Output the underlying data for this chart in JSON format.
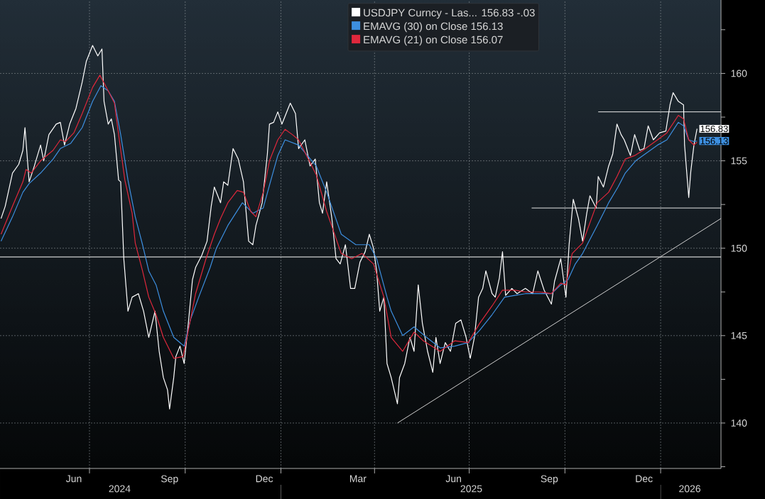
{
  "chart_data": {
    "type": "line",
    "xlim": [
      "2024-04-06",
      "2026-02-28"
    ],
    "ylim": [
      137.4,
      164.2
    ],
    "xticks": [
      {
        "value": "2024-06-16",
        "label": "Jun"
      },
      {
        "value": "2024-09-16",
        "label": "Sep"
      },
      {
        "value": "2024-12-16",
        "label": "Dec"
      },
      {
        "value": "2025-03-16",
        "label": "Mar"
      },
      {
        "value": "2025-06-16",
        "label": "Jun"
      },
      {
        "value": "2025-09-16",
        "label": "Sep"
      },
      {
        "value": "2025-12-16",
        "label": "Dec"
      },
      {
        "value": "2024-07-01",
        "label": null
      },
      {
        "value": "2024-10-01",
        "label": null
      },
      {
        "value": "2025-01-01",
        "label": null
      },
      {
        "value": "2025-04-01",
        "label": null
      },
      {
        "value": "2025-07-01",
        "label": null
      },
      {
        "value": "2025-10-01",
        "label": null
      },
      {
        "value": "2026-01-01",
        "label": null
      }
    ],
    "x2lim": [
      "2024-04-06",
      "2026-02-28"
    ],
    "x2ticks": [
      {
        "value": "2024-07-30",
        "label": "2024"
      },
      {
        "value": "2025-07-03",
        "label": "2025"
      },
      {
        "value": "2026-01-29",
        "label": "2026"
      },
      {
        "value": "2025-01-01",
        "label": null
      },
      {
        "value": "2026-01-01",
        "label": null
      }
    ],
    "yticks": [
      {
        "value": 137.5,
        "label": null
      },
      140,
      {
        "value": 142.5,
        "label": null
      },
      145,
      {
        "value": 147.5,
        "label": null
      },
      150,
      {
        "value": 152.5,
        "label": null
      },
      155,
      {
        "value": 157.5,
        "label": null
      },
      160,
      {
        "value": 162.5,
        "label": null
      }
    ],
    "grid": true,
    "legend": "top",
    "series": [
      {
        "name": "USDJPY Curncy - Las...  156.83  -.03",
        "color": "#ffffff",
        "x": [
          "2024-04-07",
          "2024-04-11",
          "2024-04-18",
          "2024-04-24",
          "2024-04-28",
          "2024-04-30",
          "2024-05-04",
          "2024-05-09",
          "2024-05-15",
          "2024-05-18",
          "2024-05-23",
          "2024-05-30",
          "2024-06-03",
          "2024-06-07",
          "2024-06-12",
          "2024-06-18",
          "2024-06-24",
          "2024-06-28",
          "2024-07-04",
          "2024-07-09",
          "2024-07-13",
          "2024-07-15",
          "2024-07-19",
          "2024-07-22",
          "2024-07-25",
          "2024-07-29",
          "2024-07-31",
          "2024-08-03",
          "2024-08-07",
          "2024-08-11",
          "2024-08-17",
          "2024-08-22",
          "2024-08-27",
          "2024-09-02",
          "2024-09-06",
          "2024-09-10",
          "2024-09-14",
          "2024-09-16",
          "2024-09-20",
          "2024-09-22",
          "2024-09-26",
          "2024-09-30",
          "2024-10-04",
          "2024-10-08",
          "2024-10-11",
          "2024-10-17",
          "2024-10-22",
          "2024-10-26",
          "2024-10-29",
          "2024-11-04",
          "2024-11-07",
          "2024-11-11",
          "2024-11-16",
          "2024-11-21",
          "2024-11-26",
          "2024-12-01",
          "2024-12-05",
          "2024-12-08",
          "2024-12-14",
          "2024-12-19",
          "2024-12-21",
          "2024-12-25",
          "2024-12-29",
          "2025-01-02",
          "2025-01-06",
          "2025-01-10",
          "2025-01-15",
          "2025-01-18",
          "2025-01-24",
          "2025-01-29",
          "2025-02-03",
          "2025-02-07",
          "2025-02-10",
          "2025-02-14",
          "2025-02-19",
          "2025-02-23",
          "2025-02-27",
          "2025-03-04",
          "2025-03-09",
          "2025-03-13",
          "2025-03-18",
          "2025-03-23",
          "2025-03-27",
          "2025-03-31",
          "2025-04-03",
          "2025-04-06",
          "2025-04-10",
          "2025-04-13",
          "2025-04-17",
          "2025-04-23",
          "2025-04-25",
          "2025-04-30",
          "2025-05-05",
          "2025-05-09",
          "2025-05-13",
          "2025-05-17",
          "2025-05-22",
          "2025-05-27",
          "2025-05-30",
          "2025-06-03",
          "2025-06-08",
          "2025-06-13",
          "2025-06-18",
          "2025-06-23",
          "2025-06-28",
          "2025-07-02",
          "2025-07-06",
          "2025-07-10",
          "2025-07-14",
          "2025-07-17",
          "2025-07-23",
          "2025-07-26",
          "2025-07-30",
          "2025-08-02",
          "2025-08-05",
          "2025-08-11",
          "2025-08-16",
          "2025-08-24",
          "2025-08-31",
          "2025-09-05",
          "2025-09-11",
          "2025-09-18",
          "2025-09-21",
          "2025-09-27",
          "2025-10-02",
          "2025-10-05",
          "2025-10-09",
          "2025-10-14",
          "2025-10-18",
          "2025-10-22",
          "2025-10-25",
          "2025-10-31",
          "2025-11-02",
          "2025-11-07",
          "2025-11-12",
          "2025-11-16",
          "2025-11-20",
          "2025-11-24",
          "2025-11-27",
          "2025-12-03",
          "2025-12-07",
          "2025-12-12",
          "2025-12-16",
          "2025-12-20",
          "2025-12-25",
          "2025-12-31",
          "2026-01-06",
          "2026-01-10",
          "2026-01-13",
          "2026-01-18",
          "2026-01-23",
          "2026-01-24",
          "2026-01-26",
          "2026-01-28",
          "2026-01-30",
          "2026-02-02",
          "2026-02-05"
        ],
        "values": [
          151.7,
          152.4,
          154.3,
          154.8,
          155.6,
          156.9,
          153.8,
          154.7,
          155.9,
          155.0,
          156.5,
          157.1,
          157.2,
          155.9,
          157.1,
          158.0,
          159.5,
          160.7,
          161.6,
          161.0,
          161.4,
          158.4,
          157.1,
          157.4,
          156.5,
          153.9,
          153.8,
          149.4,
          146.4,
          147.2,
          147.4,
          146.4,
          144.9,
          146.4,
          144.1,
          142.6,
          141.9,
          140.8,
          142.6,
          143.8,
          144.4,
          143.4,
          145.7,
          148.2,
          148.9,
          149.6,
          150.4,
          152.4,
          153.5,
          152.6,
          153.8,
          153.6,
          155.7,
          155.1,
          153.8,
          150.4,
          150.2,
          151.3,
          152.6,
          155.4,
          157.1,
          157.2,
          157.8,
          157.1,
          157.7,
          158.3,
          157.7,
          155.7,
          156.2,
          154.7,
          155.1,
          152.6,
          152.0,
          153.8,
          151.7,
          149.4,
          149.1,
          150.2,
          147.7,
          147.7,
          149.2,
          149.8,
          150.8,
          150.0,
          148.7,
          146.4,
          147.2,
          143.4,
          142.6,
          141.1,
          142.6,
          143.4,
          144.9,
          144.1,
          147.9,
          145.7,
          144.1,
          142.9,
          144.9,
          143.4,
          144.6,
          144.1,
          145.7,
          145.9,
          144.9,
          143.7,
          144.9,
          147.2,
          147.7,
          148.7,
          147.4,
          147.2,
          148.3,
          149.8,
          147.3,
          147.7,
          147.4,
          147.7,
          147.4,
          148.7,
          147.6,
          146.8,
          148.1,
          149.4,
          147.2,
          150.2,
          152.8,
          151.7,
          150.4,
          152.0,
          153.0,
          152.3,
          154.1,
          153.5,
          154.7,
          155.4,
          157.1,
          156.5,
          156.2,
          155.3,
          156.5,
          155.6,
          155.7,
          157.0,
          156.2,
          156.6,
          156.7,
          158.2,
          158.9,
          158.4,
          158.2,
          155.9,
          154.4,
          152.9,
          154.4,
          155.9,
          156.83
        ],
        "value_labels": [
          null,
          null,
          null,
          null,
          null,
          null,
          null,
          null,
          null,
          null,
          null,
          null,
          null,
          null,
          null,
          null,
          null,
          null,
          null,
          null,
          null,
          null,
          null,
          null,
          null,
          null,
          null,
          null,
          null,
          null,
          null,
          null,
          null,
          null,
          null,
          null,
          null,
          null,
          null,
          null,
          null,
          null,
          null,
          null,
          null,
          null,
          null,
          null,
          null,
          null,
          null,
          null,
          null,
          null,
          null,
          null,
          null,
          null,
          null,
          null,
          null,
          null,
          null,
          null,
          null,
          null,
          null,
          null,
          null,
          null,
          null,
          null,
          null,
          null,
          null,
          null,
          null,
          null,
          null,
          null,
          null,
          null,
          null,
          null,
          null,
          null,
          null,
          null,
          null,
          null,
          null,
          null,
          null,
          null,
          null,
          null,
          null,
          null,
          null,
          null,
          null,
          null,
          null,
          null,
          null,
          null,
          null,
          null,
          null,
          null,
          null,
          null,
          null,
          null,
          null,
          null,
          null,
          null,
          null,
          null,
          null,
          null,
          null,
          null,
          null,
          null,
          null,
          null,
          null,
          null,
          null,
          null,
          null,
          null,
          null,
          null,
          null,
          null,
          null,
          null,
          null,
          null,
          null,
          null,
          null,
          null,
          null,
          null,
          null,
          null,
          null,
          null,
          null,
          null,
          null,
          null,
          "156.83"
        ]
      },
      {
        "name": "EMAVG (30)  on Close  156.13",
        "color": "#3d8fe0",
        "x": [
          "2024-04-07",
          "2024-04-18",
          "2024-04-28",
          "2024-05-04",
          "2024-05-15",
          "2024-05-27",
          "2024-06-03",
          "2024-06-13",
          "2024-06-24",
          "2024-07-04",
          "2024-07-12",
          "2024-07-19",
          "2024-07-25",
          "2024-07-31",
          "2024-08-07",
          "2024-08-14",
          "2024-08-21",
          "2024-08-27",
          "2024-09-03",
          "2024-09-10",
          "2024-09-20",
          "2024-09-30",
          "2024-10-06",
          "2024-10-14",
          "2024-10-25",
          "2024-10-31",
          "2024-11-11",
          "2024-11-25",
          "2024-12-05",
          "2024-12-15",
          "2024-12-21",
          "2024-12-29",
          "2025-01-05",
          "2025-01-18",
          "2025-02-04",
          "2025-02-14",
          "2025-02-28",
          "2025-03-14",
          "2025-03-27",
          "2025-04-03",
          "2025-04-13",
          "2025-04-17",
          "2025-04-28",
          "2025-05-09",
          "2025-05-21",
          "2025-06-03",
          "2025-06-17",
          "2025-06-30",
          "2025-07-11",
          "2025-07-23",
          "2025-08-04",
          "2025-08-14",
          "2025-08-24",
          "2025-09-06",
          "2025-09-18",
          "2025-09-27",
          "2025-10-04",
          "2025-10-11",
          "2025-10-18",
          "2025-11-01",
          "2025-11-12",
          "2025-11-21",
          "2025-11-28",
          "2025-12-08",
          "2025-12-15",
          "2025-12-29",
          "2026-01-07",
          "2026-01-18",
          "2026-01-23",
          "2026-01-28",
          "2026-02-02",
          "2026-02-05"
        ],
        "values": [
          150.4,
          151.8,
          153.2,
          153.7,
          154.3,
          155.1,
          155.7,
          156.0,
          156.9,
          158.4,
          159.3,
          159.0,
          158.4,
          156.5,
          153.9,
          151.8,
          150.2,
          148.7,
          147.9,
          146.4,
          144.9,
          144.4,
          145.9,
          147.2,
          148.9,
          150.0,
          151.3,
          152.6,
          152.0,
          152.3,
          153.6,
          155.3,
          156.2,
          155.9,
          154.7,
          153.2,
          150.8,
          150.2,
          150.2,
          149.4,
          147.2,
          146.4,
          145.0,
          145.5,
          144.9,
          144.3,
          144.4,
          144.6,
          145.3,
          146.2,
          147.2,
          147.3,
          147.4,
          147.4,
          147.4,
          147.9,
          148.2,
          149.1,
          149.7,
          151.3,
          152.6,
          153.5,
          154.3,
          155.0,
          155.3,
          155.9,
          156.2,
          157.2,
          157.0,
          156.2,
          156.1,
          156.13
        ],
        "value_labels": [
          null,
          null,
          null,
          null,
          null,
          null,
          null,
          null,
          null,
          null,
          null,
          null,
          null,
          null,
          null,
          null,
          null,
          null,
          null,
          null,
          null,
          null,
          null,
          null,
          null,
          null,
          null,
          null,
          null,
          null,
          null,
          null,
          null,
          null,
          null,
          null,
          null,
          null,
          null,
          null,
          null,
          null,
          null,
          null,
          null,
          null,
          null,
          null,
          null,
          null,
          null,
          null,
          null,
          null,
          null,
          null,
          null,
          null,
          null,
          null,
          null,
          null,
          null,
          null,
          null,
          null,
          null,
          null,
          null,
          null,
          null,
          "156.13"
        ]
      },
      {
        "name": "EMAVG (21)  on Close  156.07",
        "color": "#e0283c",
        "x": [
          "2024-04-07",
          "2024-04-18",
          "2024-04-28",
          "2024-05-01",
          "2024-05-06",
          "2024-05-15",
          "2024-05-27",
          "2024-06-03",
          "2024-06-08",
          "2024-06-16",
          "2024-06-24",
          "2024-07-04",
          "2024-07-11",
          "2024-07-19",
          "2024-07-25",
          "2024-07-29",
          "2024-08-04",
          "2024-08-11",
          "2024-08-14",
          "2024-08-21",
          "2024-08-27",
          "2024-09-03",
          "2024-09-10",
          "2024-09-20",
          "2024-09-29",
          "2024-10-04",
          "2024-10-11",
          "2024-10-21",
          "2024-10-29",
          "2024-11-04",
          "2024-11-11",
          "2024-11-20",
          "2024-11-26",
          "2024-12-03",
          "2024-12-08",
          "2024-12-15",
          "2024-12-21",
          "2024-12-29",
          "2025-01-05",
          "2025-01-12",
          "2025-01-18",
          "2025-02-04",
          "2025-02-14",
          "2025-02-28",
          "2025-03-10",
          "2025-03-20",
          "2025-03-31",
          "2025-04-10",
          "2025-04-17",
          "2025-04-28",
          "2025-05-09",
          "2025-05-18",
          "2025-06-03",
          "2025-06-17",
          "2025-06-30",
          "2025-07-11",
          "2025-07-23",
          "2025-08-02",
          "2025-08-14",
          "2025-08-24",
          "2025-09-06",
          "2025-09-18",
          "2025-09-27",
          "2025-10-02",
          "2025-10-08",
          "2025-10-18",
          "2025-11-01",
          "2025-11-12",
          "2025-11-20",
          "2025-11-28",
          "2025-12-07",
          "2025-12-15",
          "2025-12-29",
          "2026-01-07",
          "2026-01-18",
          "2026-01-23",
          "2026-01-28",
          "2026-02-02",
          "2026-02-05"
        ],
        "values": [
          150.8,
          152.4,
          153.8,
          154.5,
          154.3,
          155.0,
          155.6,
          156.2,
          156.1,
          156.6,
          157.7,
          159.2,
          159.9,
          159.0,
          158.3,
          156.5,
          153.9,
          152.0,
          150.3,
          148.7,
          147.2,
          146.2,
          144.9,
          143.7,
          143.8,
          145.3,
          147.4,
          149.4,
          150.8,
          151.7,
          152.6,
          153.3,
          153.2,
          152.1,
          151.8,
          153.2,
          155.0,
          156.2,
          156.8,
          156.5,
          156.2,
          154.2,
          152.1,
          149.7,
          149.4,
          149.7,
          149.1,
          147.2,
          144.9,
          144.1,
          145.2,
          144.7,
          144.1,
          144.7,
          144.6,
          145.7,
          146.7,
          147.6,
          147.6,
          147.5,
          147.5,
          147.4,
          148.0,
          147.9,
          149.7,
          150.3,
          152.6,
          153.2,
          154.1,
          155.1,
          155.3,
          155.6,
          156.2,
          156.6,
          157.6,
          157.4,
          156.2,
          155.9,
          156.07
        ]
      },
      {
        "color": "#e8e8e8",
        "x": [
          "2025-08-30",
          "2026-02-28"
        ],
        "values": [
          152.3,
          152.3
        ]
      },
      {
        "color": "#e8e8e8",
        "x": [
          "2025-11-02",
          "2026-02-28"
        ],
        "values": [
          157.8,
          157.8
        ]
      },
      {
        "color": "#d0d0d0",
        "x": [
          "2025-04-23",
          "2026-02-28"
        ],
        "values": [
          140.0,
          151.7
        ]
      }
    ],
    "ref_lines": [
      {
        "axis": "y",
        "value": 149.5,
        "color": "#ffffff"
      }
    ]
  }
}
